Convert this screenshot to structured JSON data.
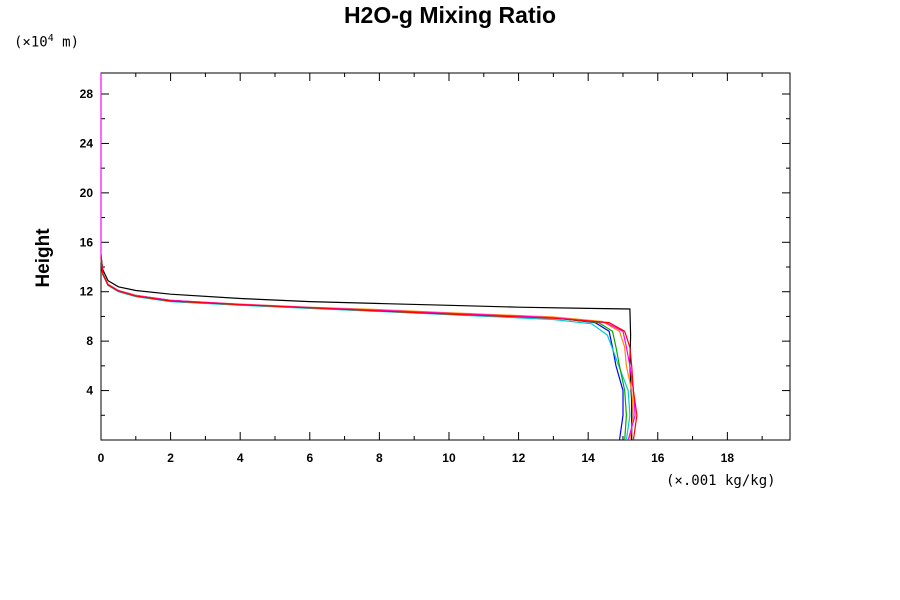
{
  "chart_data": {
    "type": "line",
    "title": "H2O-g Mixing Ratio",
    "ylabel": "Height",
    "yunits": "(×10",
    "yunits_exp": "4",
    "yunits_tail": " m)",
    "xunits": "(×.001 kg/kg)",
    "xlim": [
      0,
      19.8
    ],
    "ylim": [
      0,
      29.7
    ],
    "xticks": [
      0,
      2,
      4,
      6,
      8,
      10,
      12,
      14,
      16,
      18
    ],
    "xtick_labels": [
      "0",
      "2",
      "4",
      "6",
      "8",
      "10",
      "12",
      "14",
      "16",
      "18"
    ],
    "yticks": [
      4,
      8,
      12,
      16,
      20,
      24,
      28
    ],
    "ytick_labels": [
      "4",
      "8",
      "12",
      "16",
      "20",
      "24",
      "28"
    ],
    "grid": false,
    "series": [
      {
        "color": "#000000",
        "points": [
          [
            15.25,
            0
          ],
          [
            15.25,
            3
          ],
          [
            15.2,
            6
          ],
          [
            15.22,
            8.5
          ],
          [
            15.2,
            10.6
          ],
          [
            14,
            10.65
          ],
          [
            12,
            10.75
          ],
          [
            10,
            10.9
          ],
          [
            8,
            11.05
          ],
          [
            6,
            11.2
          ],
          [
            4,
            11.45
          ],
          [
            2,
            11.8
          ],
          [
            1,
            12.1
          ],
          [
            0.5,
            12.4
          ],
          [
            0.2,
            12.9
          ],
          [
            0.05,
            13.8
          ],
          [
            0,
            15
          ]
        ]
      },
      {
        "color": "#0000ff",
        "points": [
          [
            14.9,
            0
          ],
          [
            15,
            2
          ],
          [
            15,
            4
          ],
          [
            14.8,
            6
          ],
          [
            14.7,
            7.5
          ],
          [
            14.6,
            8.8
          ],
          [
            14.2,
            9.5
          ],
          [
            13,
            9.9
          ],
          [
            10,
            10.25
          ],
          [
            8,
            10.5
          ],
          [
            6,
            10.7
          ],
          [
            4,
            10.95
          ],
          [
            2,
            11.3
          ],
          [
            1,
            11.7
          ],
          [
            0.5,
            12.1
          ],
          [
            0.2,
            12.6
          ],
          [
            0.05,
            13.5
          ],
          [
            0,
            14.8
          ]
        ]
      },
      {
        "color": "#00cccc",
        "points": [
          [
            15.1,
            0
          ],
          [
            15.2,
            2
          ],
          [
            15.15,
            4
          ],
          [
            14.85,
            6.2
          ],
          [
            14.75,
            7
          ],
          [
            14.55,
            8.5
          ],
          [
            14.1,
            9.4
          ],
          [
            13,
            9.75
          ],
          [
            10,
            10.15
          ],
          [
            8,
            10.4
          ],
          [
            6,
            10.65
          ],
          [
            4,
            10.9
          ],
          [
            2,
            11.2
          ],
          [
            1,
            11.6
          ],
          [
            0.5,
            12
          ],
          [
            0.2,
            12.5
          ],
          [
            0.05,
            13.4
          ],
          [
            0,
            14.7
          ]
        ]
      },
      {
        "color": "#00aa00",
        "points": [
          [
            15.05,
            0
          ],
          [
            15.1,
            2
          ],
          [
            15.05,
            4
          ],
          [
            14.9,
            6
          ],
          [
            14.8,
            7.5
          ],
          [
            14.7,
            8.8
          ],
          [
            14.3,
            9.5
          ],
          [
            13,
            9.9
          ],
          [
            10,
            10.2
          ],
          [
            8,
            10.45
          ],
          [
            6,
            10.7
          ],
          [
            4,
            10.95
          ],
          [
            2,
            11.25
          ],
          [
            1,
            11.65
          ],
          [
            0.5,
            12.05
          ],
          [
            0.2,
            12.55
          ],
          [
            0.05,
            13.45
          ],
          [
            0,
            14.75
          ]
        ]
      },
      {
        "color": "#ff8800",
        "points": [
          [
            15.2,
            0
          ],
          [
            15.3,
            2
          ],
          [
            15.25,
            4
          ],
          [
            15.1,
            6
          ],
          [
            15.05,
            7.5
          ],
          [
            14.9,
            8.8
          ],
          [
            14.4,
            9.6
          ],
          [
            13,
            9.95
          ],
          [
            10,
            10.3
          ],
          [
            8,
            10.55
          ],
          [
            6,
            10.75
          ],
          [
            4,
            11
          ],
          [
            2,
            11.3
          ],
          [
            1,
            11.7
          ],
          [
            0.5,
            12.1
          ],
          [
            0.2,
            12.6
          ],
          [
            0.05,
            13.5
          ],
          [
            0,
            14.8
          ]
        ]
      },
      {
        "color": "#ff00ff",
        "points": [
          [
            15.15,
            0
          ],
          [
            15.35,
            2
          ],
          [
            15.3,
            4
          ],
          [
            15.2,
            6
          ],
          [
            15.1,
            7.5
          ],
          [
            15,
            8.8
          ],
          [
            14.5,
            9.5
          ],
          [
            13,
            9.9
          ],
          [
            10,
            10.25
          ],
          [
            8,
            10.5
          ],
          [
            6,
            10.72
          ],
          [
            4,
            10.97
          ],
          [
            2,
            11.3
          ],
          [
            1,
            11.68
          ],
          [
            0.5,
            12.08
          ],
          [
            0.2,
            12.58
          ],
          [
            0.05,
            13.5
          ],
          [
            0,
            14.8
          ],
          [
            0,
            29.7
          ]
        ]
      },
      {
        "color": "#ff0000",
        "points": [
          [
            15.3,
            0
          ],
          [
            15.4,
            2
          ],
          [
            15.3,
            4
          ],
          [
            15.25,
            6
          ],
          [
            15.2,
            7.5
          ],
          [
            15.05,
            8.8
          ],
          [
            14.6,
            9.5
          ],
          [
            13,
            9.85
          ],
          [
            10,
            10.2
          ],
          [
            8,
            10.45
          ],
          [
            6,
            10.7
          ],
          [
            4,
            10.95
          ],
          [
            2,
            11.25
          ],
          [
            1,
            11.65
          ],
          [
            0.5,
            12.05
          ],
          [
            0.2,
            12.55
          ],
          [
            0.05,
            13.45
          ],
          [
            0,
            14.75
          ]
        ]
      }
    ]
  }
}
